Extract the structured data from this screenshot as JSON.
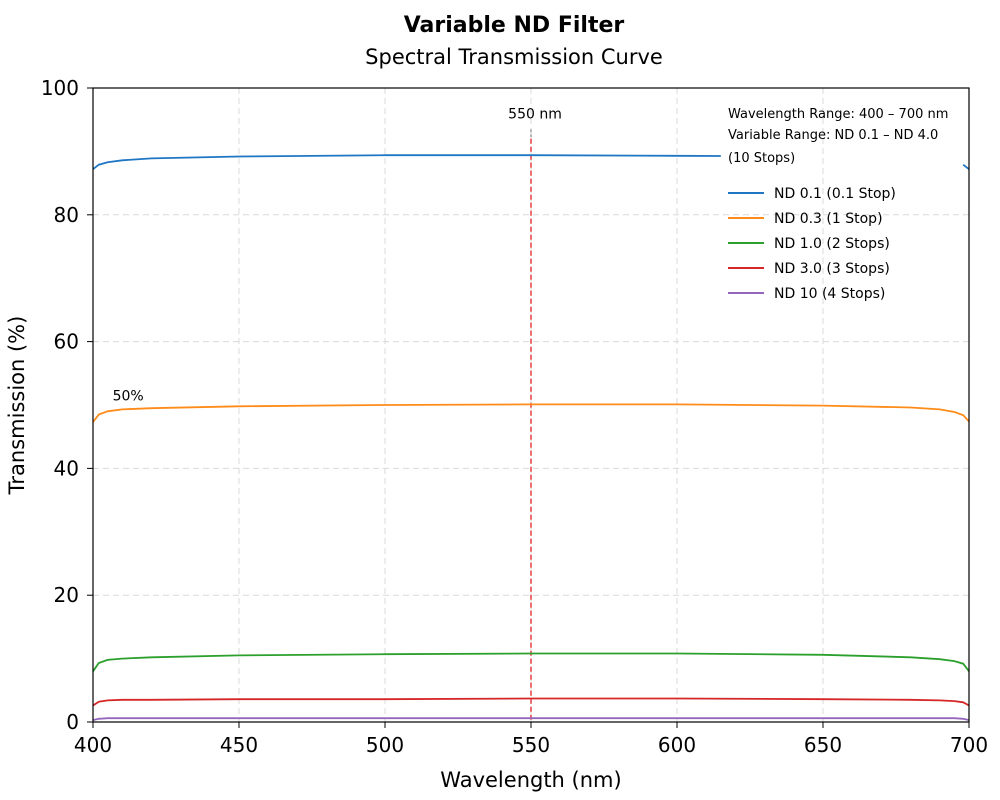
{
  "chart_data": {
    "type": "line",
    "title": "Variable ND Filter",
    "subtitle": "Spectral Transmission Curve",
    "xlabel": "Wavelength (nm)",
    "ylabel": "Transmission (%)",
    "xlim": [
      400,
      700
    ],
    "ylim": [
      0,
      100
    ],
    "xticks": [
      400,
      450,
      500,
      550,
      600,
      650,
      700
    ],
    "yticks": [
      0,
      20,
      40,
      60,
      80,
      100
    ],
    "x_tick_labels": [
      "400",
      "450",
      "500",
      "550",
      "600",
      "650",
      "700"
    ],
    "y_tick_labels": [
      "0",
      "20",
      "40",
      "60",
      "80",
      "100"
    ],
    "grid": true,
    "legend_position": "top-right",
    "info_lines": [
      "Wavelength Range: 400 – 700 nm",
      "Variable Range: ND 0.1 – ND 4.0",
      "(10 Stops)"
    ],
    "reference_line": {
      "x": 550,
      "label": "550 nm",
      "color": "#e8494a"
    },
    "annotations": [
      {
        "text": "50%",
        "x": 405,
        "y": 51.5
      }
    ],
    "series": [
      {
        "name": "ND 0.1 (0.1 Stop)",
        "color": "#1f77c4",
        "x": [
          400,
          402,
          405,
          410,
          420,
          450,
          500,
          550,
          600,
          650,
          680,
          690,
          695,
          698,
          700
        ],
        "y": [
          87.2,
          87.9,
          88.3,
          88.6,
          88.9,
          89.2,
          89.4,
          89.4,
          89.3,
          89.2,
          89.0,
          88.8,
          88.4,
          87.9,
          87.2
        ],
        "gap": [
          615,
          698
        ]
      },
      {
        "name": "ND 0.3 (1 Stop)",
        "color": "#ff8c1a",
        "x": [
          400,
          402,
          405,
          410,
          420,
          450,
          500,
          550,
          600,
          650,
          680,
          690,
          695,
          698,
          700
        ],
        "y": [
          47.3,
          48.5,
          49.0,
          49.3,
          49.5,
          49.8,
          50.0,
          50.1,
          50.1,
          49.9,
          49.6,
          49.3,
          48.9,
          48.4,
          47.4
        ]
      },
      {
        "name": "ND 1.0 (2 Stops)",
        "color": "#2ca02c",
        "x": [
          400,
          402,
          405,
          410,
          420,
          450,
          500,
          550,
          600,
          650,
          680,
          690,
          695,
          698,
          700
        ],
        "y": [
          8.0,
          9.3,
          9.8,
          10.0,
          10.2,
          10.5,
          10.7,
          10.8,
          10.8,
          10.6,
          10.2,
          9.9,
          9.6,
          9.2,
          8.0
        ]
      },
      {
        "name": "ND 3.0 (3 Stops)",
        "color": "#d62728",
        "x": [
          400,
          402,
          405,
          410,
          420,
          450,
          500,
          550,
          600,
          650,
          680,
          690,
          695,
          698,
          700
        ],
        "y": [
          2.6,
          3.2,
          3.4,
          3.5,
          3.5,
          3.6,
          3.6,
          3.7,
          3.7,
          3.6,
          3.5,
          3.4,
          3.3,
          3.1,
          2.6
        ]
      },
      {
        "name": "ND 10 (4 Stops)",
        "color": "#9467bd",
        "x": [
          400,
          402,
          405,
          410,
          450,
          500,
          550,
          600,
          650,
          690,
          695,
          698,
          700
        ],
        "y": [
          0.3,
          0.5,
          0.6,
          0.6,
          0.6,
          0.6,
          0.6,
          0.6,
          0.6,
          0.6,
          0.6,
          0.5,
          0.3
        ]
      }
    ]
  }
}
